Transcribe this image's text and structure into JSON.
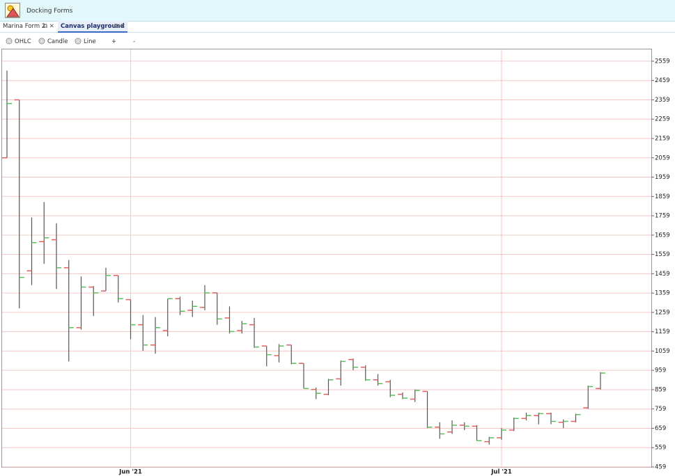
{
  "menu": {
    "items": [
      "Docking",
      "Forms"
    ]
  },
  "tabs": [
    "Marina Form 2",
    "Canvas playground"
  ],
  "toolbar": {
    "options": [
      "OHLC",
      "Candle",
      "Line"
    ],
    "buttons": [
      "+",
      "-"
    ]
  },
  "chart_data": {
    "type": "ohlc",
    "categories": [
      null,
      null,
      null,
      null,
      null,
      null,
      null,
      null,
      null,
      null,
      "Jun '21",
      null,
      null,
      null,
      null,
      null,
      null,
      null,
      null,
      null,
      null,
      null,
      null,
      null,
      null,
      null,
      null,
      null,
      null,
      null,
      null,
      null,
      null,
      null,
      null,
      null,
      null,
      null,
      null,
      null,
      "Jul '21",
      null,
      null,
      null,
      null,
      null,
      null,
      null,
      null
    ],
    "open": [
      2059,
      2359,
      1474,
      1625,
      1635,
      1490,
      1180,
      1390,
      1370,
      1450,
      1325,
      1195,
      1090,
      1165,
      1330,
      1270,
      1285,
      1360,
      1230,
      1165,
      1195,
      1085,
      1035,
      1090,
      995,
      860,
      835,
      915,
      1015,
      975,
      910,
      900,
      835,
      810,
      850,
      665,
      640,
      675,
      670,
      590,
      610,
      650,
      710,
      725,
      735,
      690,
      695,
      765,
      865
    ],
    "high": [
      2510,
      2359,
      1750,
      1830,
      1720,
      1530,
      1445,
      1395,
      1490,
      1450,
      1325,
      1245,
      1235,
      1330,
      1340,
      1320,
      1400,
      1360,
      1290,
      1215,
      1230,
      1085,
      1095,
      1090,
      995,
      870,
      915,
      1010,
      1020,
      985,
      940,
      910,
      845,
      860,
      850,
      690,
      700,
      690,
      675,
      615,
      660,
      715,
      740,
      740,
      740,
      705,
      735,
      880,
      950
    ],
    "low": [
      2059,
      1280,
      1400,
      1510,
      1380,
      1005,
      1170,
      1240,
      1370,
      1310,
      1120,
      1060,
      1045,
      1135,
      1245,
      1235,
      1270,
      1195,
      1150,
      1150,
      1075,
      980,
      1000,
      990,
      865,
      810,
      830,
      880,
      960,
      905,
      880,
      820,
      810,
      795,
      660,
      605,
      630,
      650,
      595,
      575,
      600,
      645,
      700,
      680,
      680,
      660,
      690,
      760,
      860
    ],
    "close": [
      2340,
      1440,
      1620,
      1645,
      1490,
      1180,
      1390,
      1360,
      1450,
      1330,
      1195,
      1090,
      1180,
      1330,
      1265,
      1290,
      1360,
      1225,
      1160,
      1200,
      1080,
      1040,
      1085,
      995,
      865,
      840,
      910,
      1005,
      975,
      910,
      890,
      830,
      815,
      855,
      665,
      630,
      675,
      670,
      595,
      610,
      650,
      710,
      725,
      735,
      695,
      695,
      730,
      875,
      945
    ],
    "open_color": "#e06060",
    "close_color": "#5cbf5c",
    "range_color": "#555555",
    "ylim": [
      459,
      2620
    ],
    "yticks": [
      459,
      559,
      659,
      759,
      859,
      959,
      1059,
      1159,
      1259,
      1359,
      1459,
      1559,
      1659,
      1759,
      1859,
      1959,
      2059,
      2159,
      2259,
      2359,
      2459,
      2559
    ],
    "grid": true,
    "grid_color": "#f5c6c6"
  }
}
